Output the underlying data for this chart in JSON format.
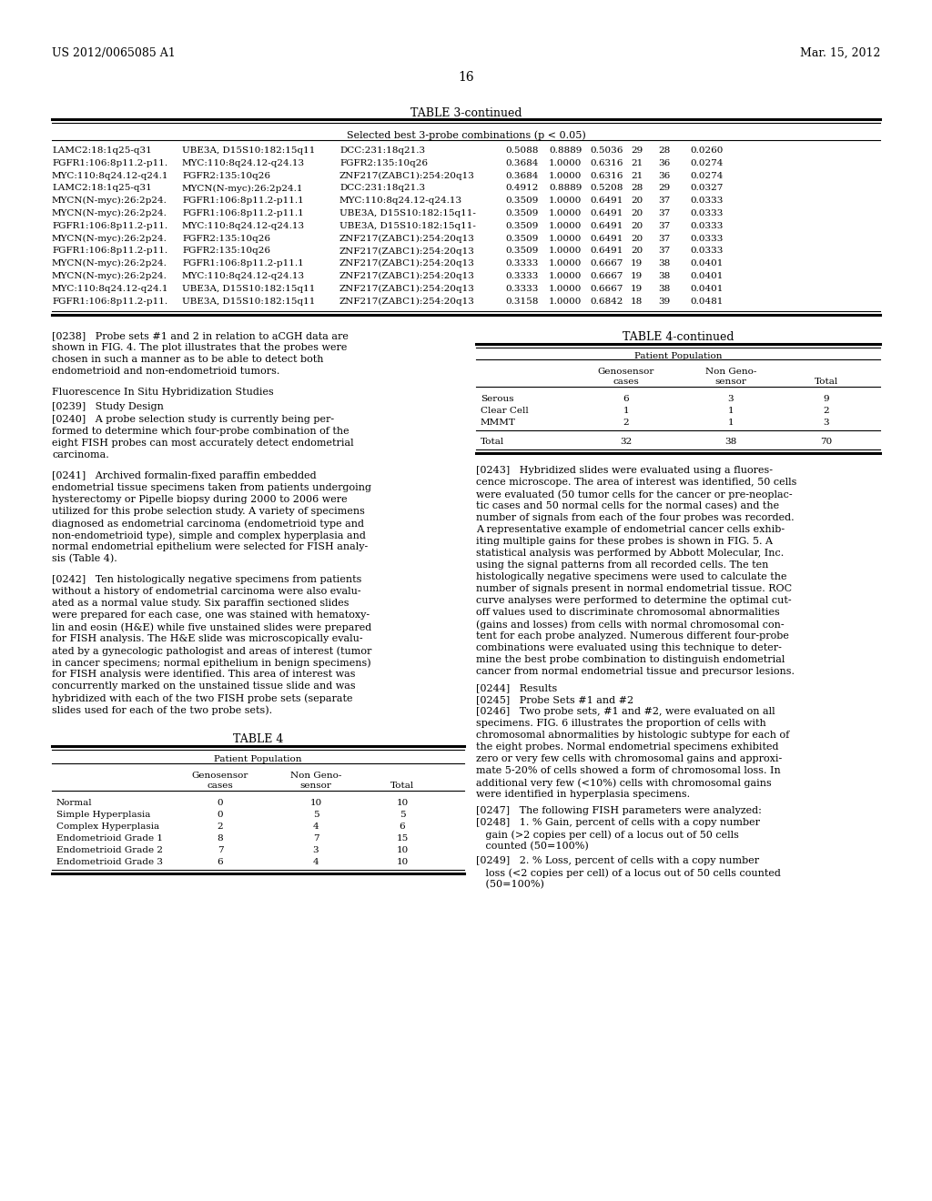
{
  "header_left": "US 2012/0065085 A1",
  "header_right": "Mar. 15, 2012",
  "page_number": "16",
  "background_color": "#ffffff",
  "table3_title": "TABLE 3-continued",
  "table3_subtitle": "Selected best 3-probe combinations (p < 0.05)",
  "table3_rows": [
    [
      "LAMC2:18:1q25-q31",
      "UBE3A, D15S10:182:15q11",
      "DCC:231:18q21.3",
      "0.5088",
      "0.8889",
      "0.5036",
      "29",
      "28",
      "0.0260"
    ],
    [
      "FGFR1:106:8p11.2-p11.",
      "MYC:110:8q24.12-q24.13",
      "FGFR2:135:10q26",
      "0.3684",
      "1.0000",
      "0.6316",
      "21",
      "36",
      "0.0274"
    ],
    [
      "MYC:110:8q24.12-q24.1",
      "FGFR2:135:10q26",
      "ZNF217(ZABC1):254:20q13",
      "0.3684",
      "1.0000",
      "0.6316",
      "21",
      "36",
      "0.0274"
    ],
    [
      "LAMC2:18:1q25-q31",
      "MYCN(N-myc):26:2p24.1",
      "DCC:231:18q21.3",
      "0.4912",
      "0.8889",
      "0.5208",
      "28",
      "29",
      "0.0327"
    ],
    [
      "MYCN(N-myc):26:2p24.",
      "FGFR1:106:8p11.2-p11.1",
      "MYC:110:8q24.12-q24.13",
      "0.3509",
      "1.0000",
      "0.6491",
      "20",
      "37",
      "0.0333"
    ],
    [
      "MYCN(N-myc):26:2p24.",
      "FGFR1:106:8p11.2-p11.1",
      "UBE3A, D15S10:182:15q11-",
      "0.3509",
      "1.0000",
      "0.6491",
      "20",
      "37",
      "0.0333"
    ],
    [
      "FGFR1:106:8p11.2-p11.",
      "MYC:110:8q24.12-q24.13",
      "UBE3A, D15S10:182:15q11-",
      "0.3509",
      "1.0000",
      "0.6491",
      "20",
      "37",
      "0.0333"
    ],
    [
      "MYCN(N-myc):26:2p24.",
      "FGFR2:135:10q26",
      "ZNF217(ZABC1):254:20q13",
      "0.3509",
      "1.0000",
      "0.6491",
      "20",
      "37",
      "0.0333"
    ],
    [
      "FGFR1:106:8p11.2-p11.",
      "FGFR2:135:10q26",
      "ZNF217(ZABC1):254:20q13",
      "0.3509",
      "1.0000",
      "0.6491",
      "20",
      "37",
      "0.0333"
    ],
    [
      "MYCN(N-myc):26:2p24.",
      "FGFR1:106:8p11.2-p11.1",
      "ZNF217(ZABC1):254:20q13",
      "0.3333",
      "1.0000",
      "0.6667",
      "19",
      "38",
      "0.0401"
    ],
    [
      "MYCN(N-myc):26:2p24.",
      "MYC:110:8q24.12-q24.13",
      "ZNF217(ZABC1):254:20q13",
      "0.3333",
      "1.0000",
      "0.6667",
      "19",
      "38",
      "0.0401"
    ],
    [
      "MYC:110:8q24.12-q24.1",
      "UBE3A, D15S10:182:15q11",
      "ZNF217(ZABC1):254:20q13",
      "0.3333",
      "1.0000",
      "0.6667",
      "19",
      "38",
      "0.0401"
    ],
    [
      "FGFR1:106:8p11.2-p11.",
      "UBE3A, D15S10:182:15q11",
      "ZNF217(ZABC1):254:20q13",
      "0.3158",
      "1.0000",
      "0.6842",
      "18",
      "39",
      "0.0481"
    ]
  ],
  "table4_cont_title": "TABLE 4-continued",
  "table4_cont_subtitle": "Patient Population",
  "table4_cont_rows": [
    [
      "Serous",
      "6",
      "3",
      "9"
    ],
    [
      "Clear Cell",
      "1",
      "1",
      "2"
    ],
    [
      "MMMT",
      "2",
      "1",
      "3"
    ],
    [
      "Total",
      "32",
      "38",
      "70"
    ]
  ],
  "table4_title": "TABLE 4",
  "table4_subtitle": "Patient Population",
  "table4_rows": [
    [
      "Normal",
      "0",
      "10",
      "10"
    ],
    [
      "Simple Hyperplasia",
      "0",
      "5",
      "5"
    ],
    [
      "Complex Hyperplasia",
      "2",
      "4",
      "6"
    ],
    [
      "Endometrioid Grade 1",
      "8",
      "7",
      "15"
    ],
    [
      "Endometrioid Grade 2",
      "7",
      "3",
      "10"
    ],
    [
      "Endometrioid Grade 3",
      "6",
      "4",
      "10"
    ]
  ],
  "left_lines_0238": [
    "[0238]   Probe sets #1 and 2 in relation to aCGH data are",
    "shown in FIG. 4. The plot illustrates that the probes were",
    "chosen in such a manner as to be able to detect both",
    "endometrioid and non-endometrioid tumors."
  ],
  "para_fluoro": "Fluorescence In Situ Hybridization Studies",
  "para_0239": "[0239]   Study Design",
  "left_lines_0240": [
    "[0240]   A probe selection study is currently being per-",
    "formed to determine which four-probe combination of the",
    "eight FISH probes can most accurately detect endometrial",
    "carcinoma."
  ],
  "left_lines_0241": [
    "[0241]   Archived formalin-fixed paraffin embedded",
    "endometrial tissue specimens taken from patients undergoing",
    "hysterectomy or Pipelle biopsy during 2000 to 2006 were",
    "utilized for this probe selection study. A variety of specimens",
    "diagnosed as endometrial carcinoma (endometrioid type and",
    "non-endometrioid type), simple and complex hyperplasia and",
    "normal endometrial epithelium were selected for FISH analy-",
    "sis (Table 4)."
  ],
  "left_lines_0242": [
    "[0242]   Ten histologically negative specimens from patients",
    "without a history of endometrial carcinoma were also evalu-",
    "ated as a normal value study. Six paraffin sectioned slides",
    "were prepared for each case, one was stained with hematoxy-",
    "lin and eosin (H&E) while five unstained slides were prepared",
    "for FISH analysis. The H&E slide was microscopically evalu-",
    "ated by a gynecologic pathologist and areas of interest (tumor",
    "in cancer specimens; normal epithelium in benign specimens)",
    "for FISH analysis were identified. This area of interest was",
    "concurrently marked on the unstained tissue slide and was",
    "hybridized with each of the two FISH probe sets (separate",
    "slides used for each of the two probe sets)."
  ],
  "right_lines_0243": [
    "[0243]   Hybridized slides were evaluated using a fluores-",
    "cence microscope. The area of interest was identified, 50 cells",
    "were evaluated (50 tumor cells for the cancer or pre-neoplас-",
    "tic cases and 50 normal cells for the normal cases) and the",
    "number of signals from each of the four probes was recorded.",
    "A representative example of endometrial cancer cells exhib-",
    "iting multiple gains for these probes is shown in FIG. 5. A",
    "statistical analysis was performed by Abbott Molecular, Inc.",
    "using the signal patterns from all recorded cells. The ten",
    "histologically negative specimens were used to calculate the",
    "number of signals present in normal endometrial tissue. ROC",
    "curve analyses were performed to determine the optimal cut-",
    "off values used to discriminate chromosomal abnormalities",
    "(gains and losses) from cells with normal chromosomal con-",
    "tent for each probe analyzed. Numerous different four-probe",
    "combinations were evaluated using this technique to deter-",
    "mine the best probe combination to distinguish endometrial",
    "cancer from normal endometrial tissue and precursor lesions."
  ],
  "para_0244": "[0244]   Results",
  "para_0245": "[0245]   Probe Sets #1 and #2",
  "right_lines_0246": [
    "[0246]   Two probe sets, #1 and #2, were evaluated on all",
    "specimens. FIG. 6 illustrates the proportion of cells with",
    "chromosomal abnormalities by histologic subtype for each of",
    "the eight probes. Normal endometrial specimens exhibited",
    "zero or very few cells with chromosomal gains and approxi-",
    "mate 5-20% of cells showed a form of chromosomal loss. In",
    "additional very few (<10%) cells with chromosomal gains",
    "were identified in hyperplasia specimens."
  ],
  "para_0247": "[0247]   The following FISH parameters were analyzed:",
  "right_lines_0248": [
    "[0248]   1. % Gain, percent of cells with a copy number",
    "   gain (>2 copies per cell) of a locus out of 50 cells",
    "   counted (50=100%)"
  ],
  "right_lines_0249": [
    "[0249]   2. % Loss, percent of cells with a copy number",
    "   loss (<2 copies per cell) of a locus out of 50 cells counted",
    "   (50=100%)"
  ]
}
